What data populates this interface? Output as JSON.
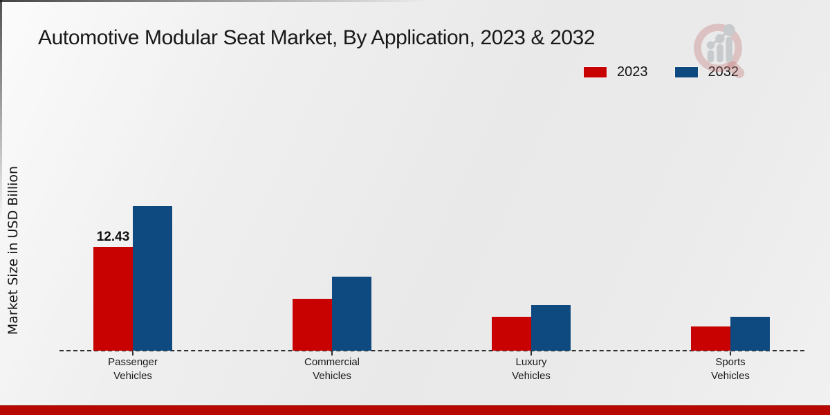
{
  "page": {
    "title": "Automotive Modular Seat Market, By Application, 2023 & 2032",
    "ylabel": "Market Size in USD Billion"
  },
  "legend": [
    {
      "label": "2023",
      "color": "#c80101"
    },
    {
      "label": "2032",
      "color": "#0e4a80"
    }
  ],
  "chart_data": {
    "type": "bar",
    "title": "Automotive Modular Seat Market, By Application, 2023 & 2032",
    "xlabel": "",
    "ylabel": "Market Size in USD Billion",
    "categories": [
      [
        "Passenger",
        "Vehicles"
      ],
      [
        "Commercial",
        "Vehicles"
      ],
      [
        "Luxury",
        "Vehicles"
      ],
      [
        "Sports",
        "Vehicles"
      ]
    ],
    "series": [
      {
        "name": "2023",
        "color": "#c80101",
        "values": [
          12.43,
          6.2,
          4.1,
          2.9
        ]
      },
      {
        "name": "2032",
        "color": "#0e4a80",
        "values": [
          17.3,
          8.9,
          5.5,
          4.1
        ]
      }
    ],
    "value_labels": [
      {
        "series": "2023",
        "category_index": 0,
        "text": "12.43"
      }
    ],
    "ylim": [
      0,
      18
    ],
    "grid": false,
    "legend_position": "top-right",
    "baseline_style": "dashed",
    "accent_colors": {
      "footer_bar": "#b80802",
      "watermark_ring": "#c97a7a"
    }
  }
}
